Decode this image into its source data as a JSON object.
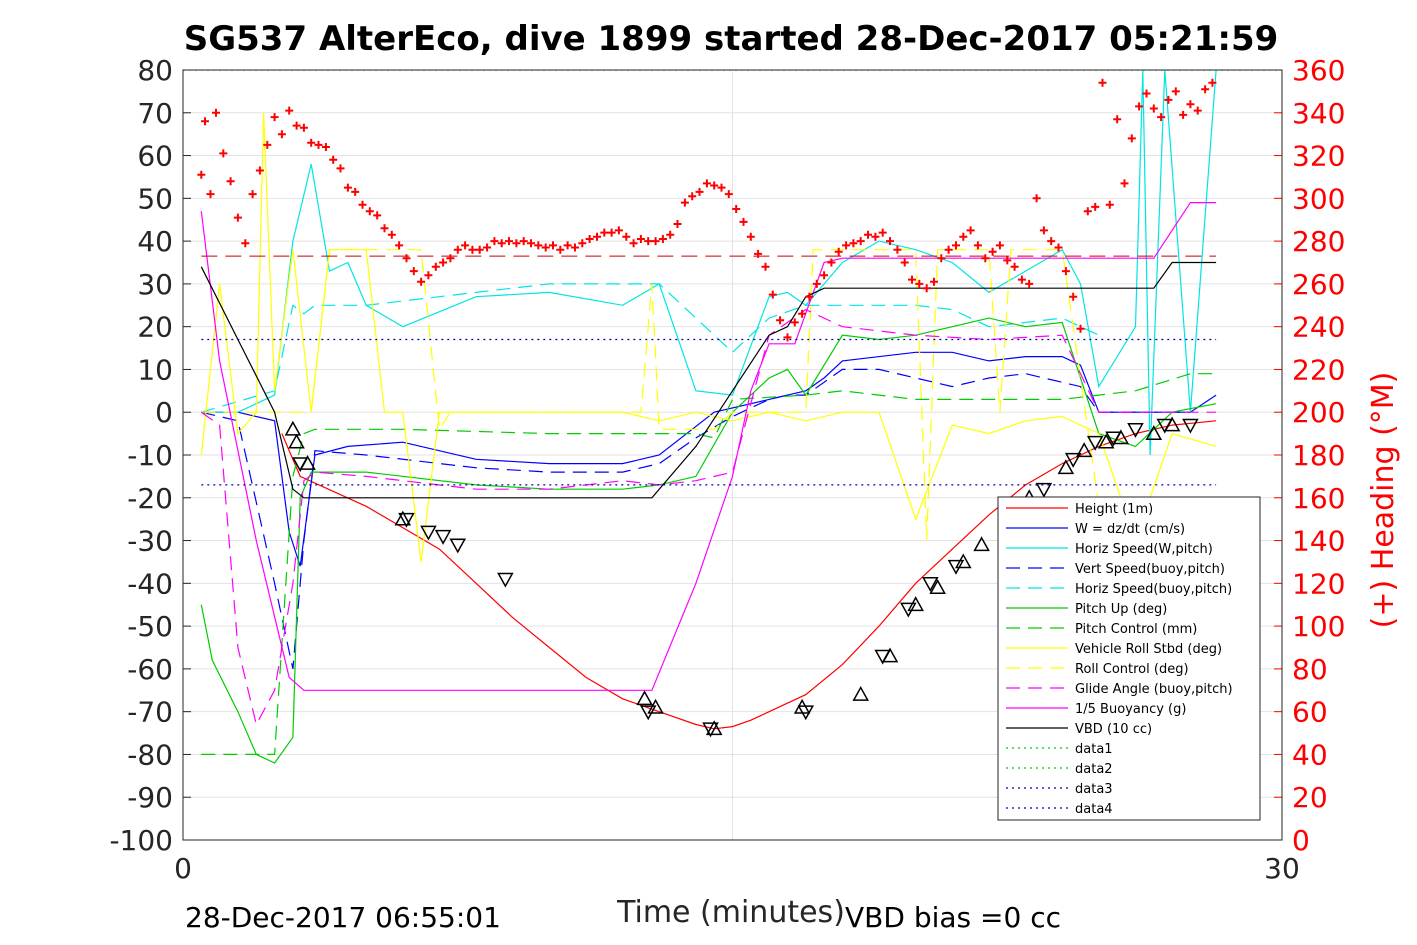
{
  "chart_data": {
    "type": "line",
    "title": "SG537 AlterEco, dive 1899 started 28-Dec-2017 05:21:59",
    "xlabel": "Time (minutes)",
    "ylabel_right": "(+) Heading (°M)",
    "xlim": [
      0,
      30
    ],
    "ylim": [
      -100,
      80
    ],
    "ylim_right": [
      0,
      360
    ],
    "x_ticks": [
      "0",
      "30"
    ],
    "y_ticks": [
      "80",
      "70",
      "60",
      "50",
      "40",
      "30",
      "20",
      "10",
      "0",
      "-10",
      "-20",
      "-30",
      "-40",
      "-50",
      "-60",
      "-70",
      "-80",
      "-90",
      "-100"
    ],
    "y_right_ticks": [
      "360",
      "340",
      "320",
      "300",
      "280",
      "260",
      "240",
      "220",
      "200",
      "180",
      "160",
      "140",
      "120",
      "100",
      "80",
      "60",
      "40",
      "20",
      "0"
    ],
    "grid": true,
    "legend_position": "bottom-right",
    "footer_left": "28-Dec-2017 06:55:01",
    "footer_right": "VBD bias =0 cc",
    "series": [
      {
        "name": "Height (1m)",
        "color": "#ff0000",
        "style": "solid",
        "x": [
          2.7,
          3.2,
          5,
          7,
          8,
          9,
          10,
          11,
          12,
          13,
          14,
          14.5,
          15,
          15.5,
          16,
          17,
          18,
          19,
          20,
          21,
          22,
          23,
          24,
          25,
          26,
          27,
          28.2
        ],
        "y": [
          -5,
          -15,
          -22,
          -32,
          -40,
          -48,
          -55,
          -62,
          -67,
          -70,
          -73,
          -74,
          -73.5,
          -72,
          -70,
          -66,
          -59,
          -50,
          -40,
          -32,
          -24,
          -17,
          -12,
          -8,
          -5,
          -3,
          -2
        ]
      },
      {
        "name": "W = dz/dt (cm/s)",
        "color": "#0000ff",
        "style": "solid",
        "x": [
          0.5,
          1.5,
          2.5,
          2.9,
          3.2,
          3.6,
          4.5,
          6,
          8,
          10,
          12,
          13,
          14.5,
          16,
          16.5,
          17,
          17.5,
          18,
          20,
          21,
          22,
          23,
          24,
          24.5,
          25,
          27.5,
          28.2
        ],
        "y": [
          0,
          0,
          -2,
          -28,
          -36,
          -10,
          -8,
          -7,
          -11,
          -12,
          -12,
          -10,
          0,
          3,
          4,
          5,
          8,
          12,
          14,
          14,
          12,
          13,
          13,
          11,
          0,
          0,
          4
        ]
      },
      {
        "name": "Horiz Speed(W,pitch)",
        "color": "#00e5e5",
        "style": "solid",
        "x": [
          0.5,
          1.5,
          2.5,
          3,
          3.5,
          4,
          4.5,
          5,
          6,
          8,
          10,
          12,
          13,
          14,
          15,
          16,
          16.5,
          17,
          18,
          19,
          20,
          21,
          22,
          23,
          24,
          24.5,
          25,
          26,
          26.2,
          26.4,
          26.8,
          27.5,
          28.2
        ],
        "y": [
          0,
          0,
          4,
          40,
          58,
          33,
          35,
          25,
          20,
          27,
          28,
          25,
          30,
          5,
          4,
          27,
          28,
          25,
          35,
          40,
          38,
          35,
          28,
          33,
          38,
          30,
          6,
          20,
          80,
          -10,
          80,
          0,
          80
        ]
      },
      {
        "name": "Vert Speed(buoy,pitch)",
        "color": "#0000ff",
        "style": "dashed",
        "x": [
          0.5,
          1.5,
          2.5,
          3,
          3.3,
          3.6,
          5,
          8,
          10,
          12,
          13,
          14,
          15,
          16,
          16.5,
          17,
          18,
          19,
          20,
          21,
          22,
          23,
          24,
          24.5,
          25,
          27.5
        ],
        "y": [
          0,
          -2,
          -40,
          -60,
          -30,
          -9,
          -10,
          -13,
          -14,
          -14,
          -12,
          -6,
          -1,
          3,
          4,
          4,
          10,
          10,
          8,
          6,
          8,
          9,
          7,
          6,
          0,
          0
        ]
      },
      {
        "name": "Horiz Speed(buoy,pitch)",
        "color": "#00e5e5",
        "style": "dashed",
        "x": [
          0.5,
          2.5,
          3,
          3.3,
          3.6,
          5,
          8,
          10,
          12,
          13,
          14,
          15,
          16,
          17,
          18,
          20,
          21,
          22,
          24,
          25
        ],
        "y": [
          0,
          5,
          25,
          23,
          25,
          25,
          28,
          30,
          30,
          30,
          22,
          14,
          22,
          25,
          25,
          25,
          24,
          20,
          22,
          18
        ]
      },
      {
        "name": "Pitch Up (deg)",
        "color": "#00cc00",
        "style": "solid",
        "x": [
          0.5,
          0.8,
          1.5,
          2,
          2.5,
          3,
          3.2,
          3.5,
          5,
          8,
          10,
          12,
          13,
          14,
          15,
          16,
          16.5,
          17,
          18,
          19,
          20,
          21,
          22,
          23,
          24,
          25,
          26,
          27,
          28.2
        ],
        "y": [
          -45,
          -58,
          -70,
          -80,
          -82,
          -76,
          -20,
          -14,
          -14,
          -17,
          -18,
          -18,
          -17,
          -15,
          0,
          8,
          10,
          4,
          18,
          17,
          18,
          20,
          22,
          20,
          21,
          -5,
          -8,
          0,
          2
        ]
      },
      {
        "name": "Pitch Control (mm)",
        "color": "#00cc00",
        "style": "dashed",
        "x": [
          0.5,
          2.5,
          3,
          3.3,
          3.6,
          6,
          10,
          14,
          14.5,
          15,
          17,
          18,
          20,
          24,
          25,
          26,
          27.5,
          28.2
        ],
        "y": [
          -80,
          -80,
          -15,
          -5,
          -4,
          -4,
          -5,
          -5,
          -6,
          3,
          4,
          5,
          3,
          3,
          4,
          5,
          9,
          9
        ]
      },
      {
        "name": "Vehicle Roll Stbd (deg)",
        "color": "#ffff00",
        "style": "solid",
        "x": [
          0.5,
          1,
          1.5,
          2,
          2.2,
          2.5,
          3,
          3.5,
          4,
          5,
          5.5,
          6,
          6.5,
          7,
          8,
          10,
          12,
          13,
          14,
          15,
          16,
          17,
          18,
          19,
          20,
          21,
          22,
          23,
          24,
          25,
          26,
          27,
          28.2
        ],
        "y": [
          -10,
          30,
          -5,
          0,
          70,
          5,
          38,
          0,
          38,
          38,
          0,
          0,
          -35,
          0,
          0,
          0,
          0,
          -2,
          0,
          -2,
          0,
          -2,
          0,
          0,
          -25,
          -3,
          -5,
          -2,
          -1,
          -5,
          -30,
          -5,
          -8
        ]
      },
      {
        "name": "Roll Control (deg)",
        "color": "#ffff00",
        "style": "dashed",
        "x": [
          0.5,
          3.5,
          4,
          6.5,
          7,
          7.3,
          7.5,
          12.5,
          12.8,
          13,
          14.5,
          15,
          16.5,
          17,
          17.2,
          19,
          20,
          20.3,
          20.6,
          21,
          22,
          22.3,
          22.6,
          24,
          25,
          26.5,
          28.2
        ],
        "y": [
          0,
          0,
          38,
          38,
          -4,
          0,
          0,
          0,
          30,
          -4,
          -4,
          0,
          0,
          0,
          38,
          38,
          38,
          -30,
          38,
          38,
          38,
          0,
          38,
          38,
          -22,
          -20,
          -20
        ]
      },
      {
        "name": "Glide Angle (buoy,pitch)",
        "color": "#ff00ff",
        "style": "dashed",
        "x": [
          0.5,
          1,
          1.5,
          2,
          2.5,
          3,
          3.3,
          3.6,
          5,
          8,
          10,
          12,
          13,
          14,
          15,
          16,
          17,
          18,
          20,
          22,
          24,
          25,
          26.5,
          27,
          28.2
        ],
        "y": [
          0,
          -3,
          -55,
          -73,
          -65,
          -40,
          -16,
          -14,
          -15,
          -18,
          -18,
          -16,
          -17,
          -16,
          -14,
          18,
          24,
          20,
          18,
          17,
          18,
          0,
          0,
          0,
          0
        ]
      },
      {
        "name": "1/5 Buoyancy (g)",
        "color": "#ff00ff",
        "style": "solid",
        "x": [
          0.5,
          1,
          2,
          2.9,
          3.3,
          5,
          8,
          10,
          12,
          12.8,
          14,
          15,
          15.5,
          16,
          16.7,
          17.5,
          18,
          20,
          22,
          24,
          25,
          26,
          26.5,
          27.5,
          28.2
        ],
        "y": [
          47,
          12,
          -30,
          -62,
          -65,
          -65,
          -65,
          -65,
          -65,
          -65,
          -40,
          -15,
          5,
          16,
          16,
          35,
          36,
          36,
          36,
          36,
          36,
          36,
          36,
          49,
          49
        ]
      },
      {
        "name": "VBD (10 cc)",
        "color": "#000000",
        "style": "solid",
        "x": [
          0.5,
          1.5,
          2.5,
          3,
          3.3,
          5,
          8,
          10,
          12,
          12.8,
          14,
          15,
          16,
          16.5,
          17,
          17.5,
          18,
          20,
          22,
          24,
          25,
          26,
          26.5,
          27,
          28.2
        ],
        "y": [
          34,
          17,
          0,
          -18,
          -20,
          -20,
          -20,
          -20,
          -20,
          -20,
          -8,
          5,
          18,
          20,
          27,
          29,
          29,
          29,
          29,
          29,
          29,
          29,
          29,
          35,
          35
        ]
      },
      {
        "name": "data1",
        "color": "#00cc00",
        "style": "dotted",
        "x": [
          0,
          30
        ],
        "y": [
          80,
          80
        ]
      },
      {
        "name": "data2",
        "color": "#00cc00",
        "style": "dotted",
        "x": [
          0,
          30
        ],
        "y": [
          80,
          80
        ]
      },
      {
        "name": "data3",
        "color": "#0000aa",
        "style": "dotted",
        "x": [
          0.5,
          28.2
        ],
        "y": [
          -17,
          -17
        ]
      },
      {
        "name": "data4",
        "color": "#0000aa",
        "style": "dotted",
        "x": [
          0.5,
          28.2
        ],
        "y": [
          17,
          17
        ]
      }
    ],
    "heading_reference_line": {
      "color": "#cc0000",
      "style": "dashed",
      "heading": 273
    },
    "heading_points": {
      "color": "#ff0000",
      "marker": "+",
      "x": [
        0.5,
        0.6,
        0.75,
        0.9,
        1.1,
        1.3,
        1.5,
        1.7,
        1.9,
        2.1,
        2.3,
        2.5,
        2.7,
        2.9,
        3.1,
        3.3,
        3.5,
        3.7,
        3.9,
        4.1,
        4.3,
        4.5,
        4.7,
        4.9,
        5.1,
        5.3,
        5.5,
        5.7,
        5.9,
        6.1,
        6.3,
        6.5,
        6.7,
        6.9,
        7.1,
        7.3,
        7.5,
        7.7,
        7.9,
        8.1,
        8.3,
        8.5,
        8.7,
        8.9,
        9.1,
        9.3,
        9.5,
        9.7,
        9.9,
        10.1,
        10.3,
        10.5,
        10.7,
        10.9,
        11.1,
        11.3,
        11.5,
        11.7,
        11.9,
        12.1,
        12.3,
        12.5,
        12.7,
        12.9,
        13.1,
        13.3,
        13.5,
        13.7,
        13.9,
        14.1,
        14.3,
        14.5,
        14.7,
        14.9,
        15.1,
        15.3,
        15.5,
        15.7,
        15.9,
        16.1,
        16.3,
        16.5,
        16.7,
        16.9,
        17.1,
        17.3,
        17.5,
        17.7,
        17.9,
        18.1,
        18.3,
        18.5,
        18.7,
        18.9,
        19.1,
        19.3,
        19.5,
        19.7,
        19.9,
        20.1,
        20.3,
        20.5,
        20.7,
        20.9,
        21.1,
        21.3,
        21.5,
        21.7,
        21.9,
        22.1,
        22.3,
        22.5,
        22.7,
        22.9,
        23.1,
        23.3,
        23.5,
        23.7,
        23.9,
        24.1,
        24.3,
        24.5,
        24.7,
        24.9,
        25.1,
        25.3,
        25.5,
        25.7,
        25.9,
        26.1,
        26.3,
        26.5,
        26.7,
        26.9,
        27.1,
        27.3,
        27.5,
        27.7,
        27.9,
        28.1
      ],
      "y": [
        311,
        336,
        302,
        340,
        321,
        308,
        291,
        279,
        302,
        313,
        325,
        338,
        330,
        341,
        334,
        333,
        326,
        325,
        324,
        318,
        314,
        305,
        303,
        297,
        294,
        292,
        286,
        283,
        278,
        272,
        266,
        261,
        264,
        268,
        270,
        272,
        276,
        278,
        276,
        276,
        277,
        280,
        279,
        280,
        279,
        280,
        279,
        278,
        277,
        278,
        276,
        278,
        277,
        279,
        281,
        282,
        284,
        284,
        285,
        282,
        279,
        281,
        280,
        280,
        281,
        283,
        288,
        298,
        301,
        303,
        307,
        306,
        305,
        302,
        295,
        289,
        282,
        274,
        268,
        255,
        243,
        235,
        242,
        246,
        254,
        260,
        264,
        270,
        275,
        278,
        279,
        280,
        283,
        282,
        284,
        280,
        276,
        270,
        262,
        260,
        258,
        261,
        272,
        276,
        278,
        282,
        285,
        278,
        272,
        275,
        278,
        271,
        268,
        262,
        260,
        300,
        285,
        280,
        277,
        266,
        254,
        239,
        294,
        296,
        354,
        297,
        337,
        307,
        328,
        343,
        349,
        342,
        338,
        346,
        350,
        339,
        344,
        341,
        351,
        354
      ]
    },
    "marker_points": {
      "up": [
        [
          3.0,
          -4
        ],
        [
          3.1,
          -7
        ],
        [
          3.4,
          -12
        ],
        [
          6.0,
          -25
        ],
        [
          12.6,
          -67
        ],
        [
          12.9,
          -69
        ],
        [
          14.5,
          -74
        ],
        [
          16.9,
          -69
        ],
        [
          18.5,
          -66
        ],
        [
          19.3,
          -57
        ],
        [
          20.0,
          -45
        ],
        [
          20.6,
          -41
        ],
        [
          21.3,
          -35
        ],
        [
          21.8,
          -31
        ],
        [
          23.1,
          -20
        ],
        [
          24.1,
          -13
        ],
        [
          24.6,
          -9
        ],
        [
          25.2,
          -7
        ],
        [
          25.6,
          -6
        ],
        [
          26.5,
          -5
        ],
        [
          27.0,
          -3
        ]
      ],
      "down": [
        [
          3.2,
          -12
        ],
        [
          6.1,
          -25
        ],
        [
          6.7,
          -28
        ],
        [
          7.1,
          -29
        ],
        [
          7.5,
          -31
        ],
        [
          8.8,
          -39
        ],
        [
          12.7,
          -70
        ],
        [
          14.4,
          -74
        ],
        [
          17.0,
          -70
        ],
        [
          19.1,
          -57
        ],
        [
          19.8,
          -46
        ],
        [
          20.4,
          -40
        ],
        [
          21.1,
          -36
        ],
        [
          23.5,
          -18
        ],
        [
          24.3,
          -11
        ],
        [
          24.9,
          -7
        ],
        [
          25.4,
          -6
        ],
        [
          26.0,
          -4
        ],
        [
          26.8,
          -3
        ],
        [
          27.5,
          -3
        ]
      ]
    }
  }
}
